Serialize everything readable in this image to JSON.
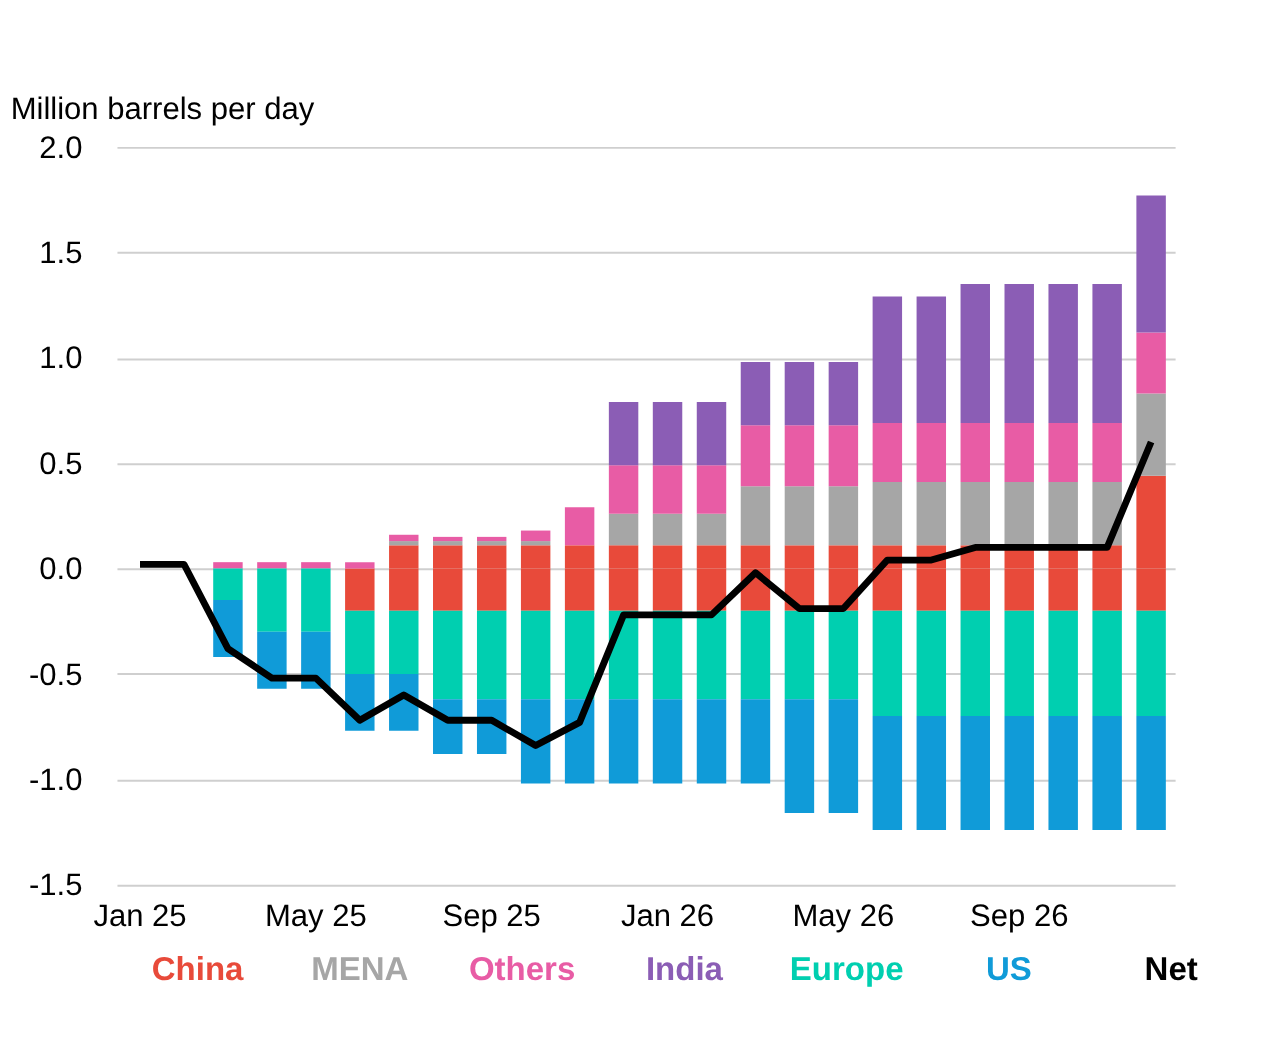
{
  "chart_data": {
    "type": "bar",
    "stacked": true,
    "ylabel": "Million barrels per day",
    "categories": [
      "Jan 25",
      null,
      null,
      null,
      "May 25",
      null,
      null,
      null,
      "Sep 25",
      null,
      null,
      null,
      "Jan 26",
      null,
      null,
      null,
      "May 26",
      null,
      null,
      null,
      "Sep 26",
      null,
      null,
      null
    ],
    "series": [
      {
        "name": "China",
        "color": "#e84a3a",
        "values": [
          null,
          null,
          null,
          null,
          null,
          -0.2,
          -0.2,
          -0.2,
          -0.2,
          -0.2,
          -0.2,
          -0.2,
          -0.2,
          -0.2,
          -0.2,
          -0.2,
          -0.2,
          -0.2,
          -0.2,
          -0.2,
          -0.2,
          -0.2,
          -0.2,
          -0.2
        ]
      },
      {
        "color": "#e84a3a",
        "values": [
          null,
          null,
          null,
          null,
          null,
          null,
          0.11,
          0.11,
          0.11,
          0.11,
          0.11,
          0.11,
          0.11,
          0.11,
          0.11,
          0.11,
          0.11,
          0.11,
          0.11,
          0.11,
          0.11,
          0.11,
          0.11,
          0.44
        ]
      },
      {
        "name": "MENA",
        "color": "#a6a6a6",
        "values": [
          null,
          null,
          null,
          null,
          null,
          null,
          0.02,
          0.02,
          0.02,
          0.02,
          null,
          0.15,
          0.15,
          0.15,
          0.28,
          0.28,
          0.28,
          0.3,
          0.3,
          0.3,
          0.3,
          0.3,
          0.3,
          0.39
        ]
      },
      {
        "name": "Others",
        "color": "#e85ca5",
        "values": [
          null,
          null,
          0.03,
          0.03,
          0.03,
          0.03,
          0.03,
          0.02,
          0.02,
          0.05,
          0.18,
          0.23,
          0.23,
          0.23,
          0.29,
          0.29,
          0.29,
          0.28,
          0.28,
          0.28,
          0.28,
          0.28,
          0.28,
          0.29
        ]
      },
      {
        "name": "India",
        "color": "#8b5db5",
        "values": [
          null,
          null,
          null,
          null,
          null,
          null,
          null,
          null,
          null,
          null,
          null,
          0.3,
          0.3,
          0.3,
          0.3,
          0.3,
          0.3,
          0.6,
          0.6,
          0.66,
          0.66,
          0.66,
          0.66,
          0.65
        ]
      },
      {
        "name": "Europe",
        "color": "#00cfb0",
        "values": [
          null,
          null,
          -0.15,
          -0.3,
          -0.3,
          -0.3,
          -0.3,
          -0.42,
          -0.42,
          -0.42,
          -0.42,
          -0.42,
          -0.42,
          -0.42,
          -0.42,
          -0.42,
          -0.42,
          -0.5,
          -0.5,
          -0.5,
          -0.5,
          -0.5,
          -0.5,
          -0.5
        ]
      },
      {
        "name": "US",
        "color": "#109bd8",
        "values": [
          null,
          null,
          -0.27,
          -0.27,
          -0.27,
          -0.27,
          -0.27,
          -0.26,
          -0.26,
          -0.4,
          -0.4,
          -0.4,
          -0.4,
          -0.4,
          -0.4,
          -0.54,
          -0.54,
          -0.54,
          -0.54,
          -0.54,
          -0.54,
          -0.54,
          -0.54,
          -0.54
        ]
      },
      {
        "name": "Net",
        "type": "line",
        "color": "#000000",
        "values": [
          0.02,
          0.02,
          -0.38,
          -0.52,
          -0.52,
          -0.72,
          -0.6,
          -0.72,
          -0.72,
          -0.84,
          -0.73,
          -0.22,
          -0.22,
          -0.22,
          -0.02,
          -0.19,
          -0.19,
          0.04,
          0.04,
          0.1,
          0.1,
          0.1,
          0.1,
          0.6
        ]
      }
    ],
    "ylim": [
      -1.5,
      2.0
    ],
    "yticks": [
      {
        "value": -1.5,
        "label": "-1.5"
      },
      {
        "value": -1,
        "label": "-1.0"
      },
      -0.5,
      {
        "value": 0,
        "label": "0.0"
      },
      0.5,
      {
        "value": 1,
        "label": "1.0"
      },
      1.5,
      {
        "value": 2,
        "label": "2.0"
      }
    ],
    "grid": "y",
    "legend": "bottom"
  }
}
